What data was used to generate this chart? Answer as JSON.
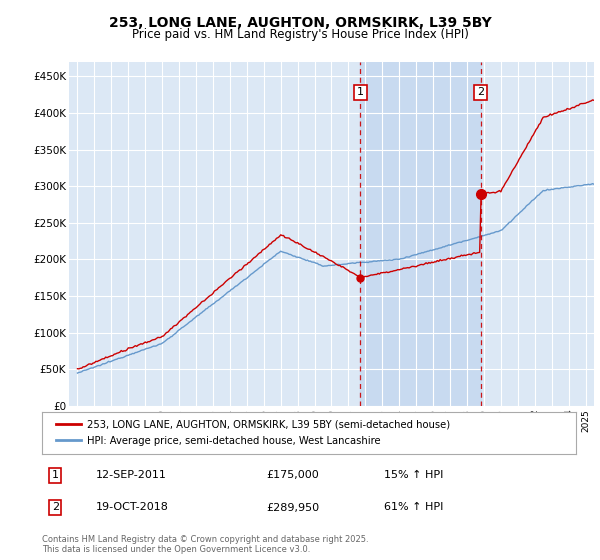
{
  "title": "253, LONG LANE, AUGHTON, ORMSKIRK, L39 5BY",
  "subtitle": "Price paid vs. HM Land Registry's House Price Index (HPI)",
  "legend1": "253, LONG LANE, AUGHTON, ORMSKIRK, L39 5BY (semi-detached house)",
  "legend2": "HPI: Average price, semi-detached house, West Lancashire",
  "footnote": "Contains HM Land Registry data © Crown copyright and database right 2025.\nThis data is licensed under the Open Government Licence v3.0.",
  "event1_label": "1",
  "event1_date": "12-SEP-2011",
  "event1_price": "£175,000",
  "event1_hpi": "15% ↑ HPI",
  "event1_x": 2011.7,
  "event2_label": "2",
  "event2_date": "19-OCT-2018",
  "event2_price": "£289,950",
  "event2_hpi": "61% ↑ HPI",
  "event2_x": 2018.8,
  "ylabel_ticks": [
    "£0",
    "£50K",
    "£100K",
    "£150K",
    "£200K",
    "£250K",
    "£300K",
    "£350K",
    "£400K",
    "£450K"
  ],
  "ytick_values": [
    0,
    50000,
    100000,
    150000,
    200000,
    250000,
    300000,
    350000,
    400000,
    450000
  ],
  "ylim": [
    0,
    470000
  ],
  "xlim_min": 1994.5,
  "xlim_max": 2025.5,
  "fig_bg_color": "#ffffff",
  "plot_bg_color": "#dce8f5",
  "shaded_region_color": "#c8daf0",
  "red_line_color": "#cc0000",
  "blue_line_color": "#6699cc",
  "grid_color": "#ffffff",
  "dashed_line_color": "#cc0000"
}
